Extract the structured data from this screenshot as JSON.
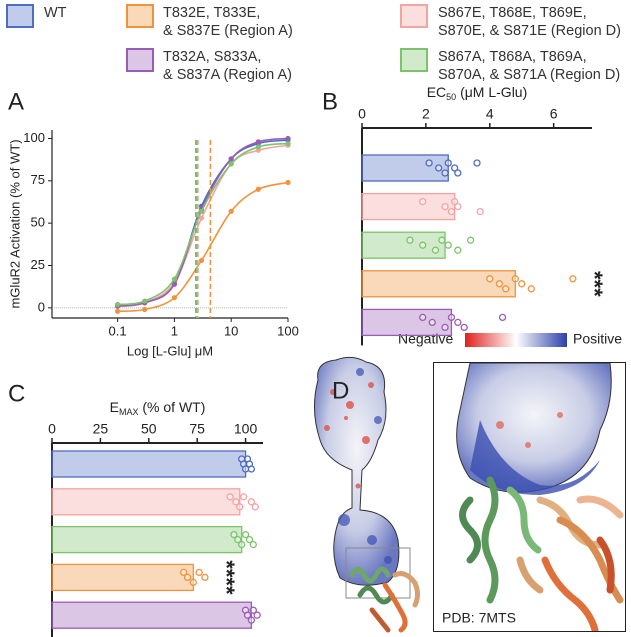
{
  "chart_data": [
    {
      "type": "line",
      "panel_label": "A",
      "ylabel": "mGluR2 Activation (% of WT)",
      "xlabel": "Log [L-Glu] μM",
      "log_x": true,
      "xlim": [
        0.007,
        100
      ],
      "xticks": [
        0.1,
        1,
        10,
        100
      ],
      "ylim": [
        -6,
        105
      ],
      "yticks": [
        0,
        25,
        50,
        75,
        100
      ],
      "x": [
        0.1,
        0.3,
        1,
        3,
        10,
        30,
        100
      ],
      "series": [
        {
          "name": "WT",
          "color": "#4e6cc4",
          "values": [
            1,
            3,
            14,
            60,
            88,
            97,
            99
          ],
          "ec50": 2.5
        },
        {
          "name": "T832E, T833E,\n& S837E (Region A)",
          "color": "#f2923a",
          "values": [
            -2,
            -1,
            6,
            28,
            57,
            70,
            74
          ],
          "ec50": 4.3
        },
        {
          "name": "S867E, T868E, T869E,\nS870E, & S871E (Region D)",
          "color": "#f4a3a3",
          "values": [
            1,
            3,
            15,
            53,
            85,
            93,
            96
          ],
          "ec50": 2.6
        },
        {
          "name": "T832A, S833A,\n& S837A (Region A)",
          "color": "#9a5cb4",
          "values": [
            1,
            3,
            14,
            58,
            88,
            98,
            100
          ],
          "ec50": 2.4
        },
        {
          "name": "S867A, T868A, T869A,\nS870A, & S871A (Region D)",
          "color": "#7cc46a",
          "values": [
            2,
            4,
            17,
            57,
            85,
            95,
            97
          ],
          "ec50": 2.45
        }
      ]
    },
    {
      "type": "barh",
      "panel_label": "B",
      "xlabel": {
        "main": "EC",
        "sub": "50",
        "rest": " (μM L-Glu)"
      },
      "xlim": [
        0,
        7.2
      ],
      "xticks": [
        0,
        2,
        4,
        6
      ],
      "colors": [
        "#4e6cc4",
        "#f4a3a3",
        "#7cc46a",
        "#f2923a",
        "#9a5cb4"
      ],
      "values": [
        2.7,
        2.9,
        2.6,
        4.8,
        2.8
      ],
      "points": [
        [
          2.1,
          2.4,
          2.6,
          2.7,
          2.9,
          3.0,
          3.6
        ],
        [
          1.9,
          2.6,
          2.8,
          2.9,
          3.0,
          3.7
        ],
        [
          1.5,
          1.9,
          2.3,
          2.5,
          2.7,
          3.0,
          3.4
        ],
        [
          4.0,
          4.3,
          4.5,
          4.8,
          5.0,
          5.3,
          6.6
        ],
        [
          1.9,
          2.2,
          2.6,
          2.8,
          3.0,
          3.2,
          4.4
        ]
      ],
      "significance": [
        null,
        null,
        null,
        "***",
        null
      ]
    },
    {
      "type": "barh",
      "panel_label": "C",
      "xlabel": {
        "main": "E",
        "sub": "MAX",
        "rest": " (% of WT)"
      },
      "xlim": [
        0,
        109
      ],
      "xticks": [
        0,
        25,
        50,
        75,
        100
      ],
      "colors": [
        "#4e6cc4",
        "#f4a3a3",
        "#7cc46a",
        "#f2923a",
        "#9a5cb4"
      ],
      "values": [
        100,
        97,
        98,
        73,
        103
      ],
      "points": [
        [
          98,
          99,
          100,
          101,
          102,
          103
        ],
        [
          92,
          95,
          97,
          99,
          103,
          105
        ],
        [
          94,
          96,
          98,
          100,
          102,
          104
        ],
        [
          68,
          70,
          73,
          76,
          79
        ],
        [
          100,
          101,
          103,
          104,
          106
        ]
      ],
      "significance": [
        null,
        null,
        null,
        "****",
        null
      ]
    }
  ],
  "panel_d": {
    "panel_label": "D",
    "colorbar_low": "Negative",
    "colorbar_high": "Positive",
    "inset_label": "PDB: 7MTS"
  }
}
